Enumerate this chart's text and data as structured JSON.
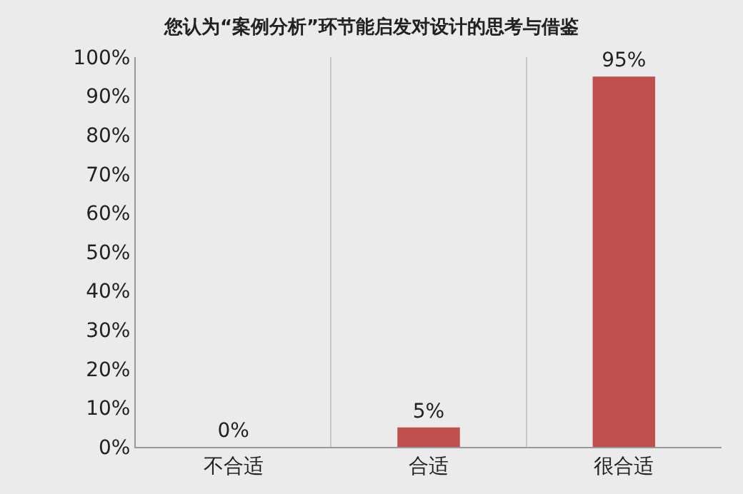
{
  "chart_data": {
    "type": "bar",
    "title": "您认为“案例分析”环节能启发对设计的思考与借鉴",
    "categories": [
      "不合适",
      "合适",
      "很合适"
    ],
    "values": [
      0,
      5,
      95
    ],
    "color": "#c0504d",
    "value_labels": [
      "0%",
      "5%",
      "95%"
    ],
    "ylim": [
      0,
      100
    ],
    "yticks": [
      {
        "value": 0,
        "label": "0%"
      },
      {
        "value": 10,
        "label": "10%"
      },
      {
        "value": 20,
        "label": "20%"
      },
      {
        "value": 30,
        "label": "30%"
      },
      {
        "value": 40,
        "label": "40%"
      },
      {
        "value": 50,
        "label": "50%"
      },
      {
        "value": 60,
        "label": "60%"
      },
      {
        "value": 70,
        "label": "70%"
      },
      {
        "value": 80,
        "label": "80%"
      },
      {
        "value": 90,
        "label": "90%"
      },
      {
        "value": 100,
        "label": "100%"
      }
    ],
    "grid": "x"
  }
}
